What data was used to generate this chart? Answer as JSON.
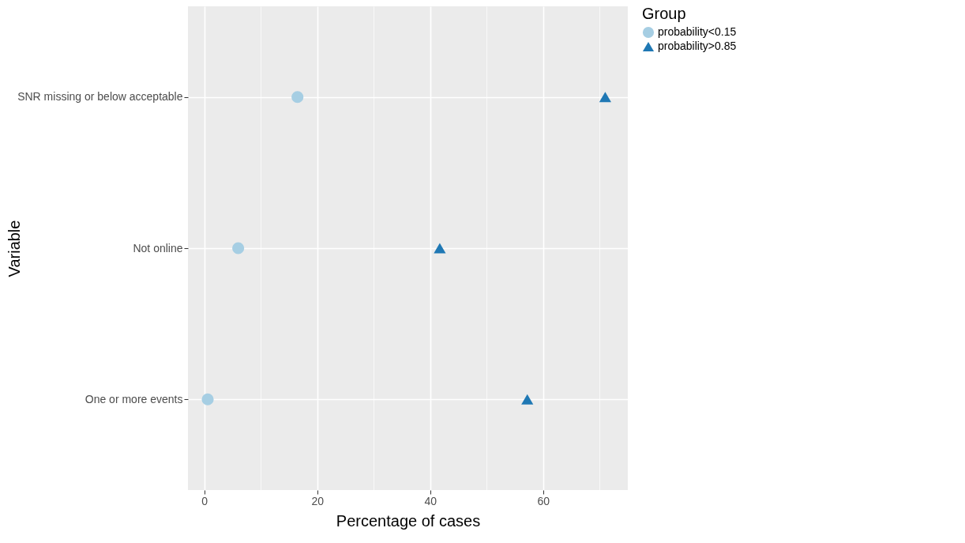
{
  "chart_data": {
    "type": "scatter",
    "orientation": "horizontal",
    "xlabel": "Percentage of cases",
    "ylabel": "Variable",
    "legend_title": "Group",
    "legend": "right",
    "grid": true,
    "categories": [
      "SNR missing or below acceptable",
      "Not online",
      "One or more events"
    ],
    "xlim": [
      -2.9,
      75
    ],
    "xticks": [
      0,
      {
        "value": 10,
        "label": null
      },
      20,
      {
        "value": 30,
        "label": null
      },
      40,
      {
        "value": 50,
        "label": null
      },
      60,
      {
        "value": 70,
        "label": null
      }
    ],
    "series": [
      {
        "name": "probability<0.15",
        "color": "#a6cee3",
        "marker": "circle",
        "values": [
          16.5,
          6.0,
          0.6
        ]
      },
      {
        "name": "probability>0.85",
        "color": "#1f78b4",
        "marker": "triangle",
        "values": [
          71.0,
          41.7,
          57.2
        ]
      }
    ]
  }
}
